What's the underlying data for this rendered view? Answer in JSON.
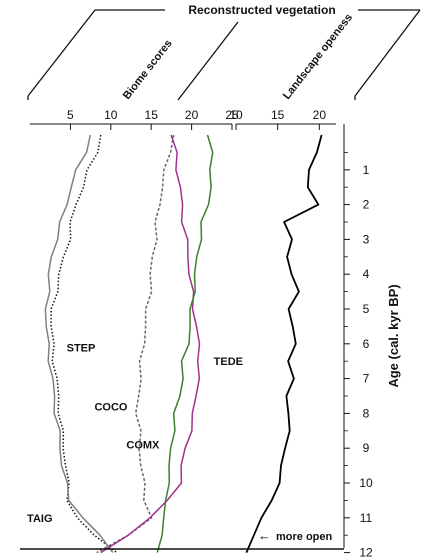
{
  "header": {
    "title": "Reconstructed vegetation",
    "left_panel_title": "Biome scores",
    "right_panel_title": "Landscape openess"
  },
  "chart_data": [
    {
      "type": "line",
      "title": "Biome scores",
      "orientation": "vertical-depth",
      "xlabel": "",
      "ylabel": "Age (cal. kyr BP)",
      "xlim": [
        0,
        25
      ],
      "ylim": [
        12,
        0
      ],
      "x_ticks": [
        5,
        10,
        15,
        20,
        25
      ],
      "y_ticks": [
        1,
        2,
        3,
        4,
        5,
        6,
        7,
        8,
        9,
        10,
        11,
        12
      ],
      "age": [
        0,
        0.5,
        1,
        1.5,
        2,
        2.5,
        3,
        3.5,
        4,
        4.5,
        5,
        5.5,
        6,
        6.5,
        7,
        7.5,
        8,
        8.5,
        9,
        9.5,
        10,
        10.5,
        11,
        11.5,
        12
      ],
      "series": [
        {
          "name": "STEP",
          "color": "#111111",
          "style": "dotted",
          "values": [
            8.8,
            8.2,
            7.3,
            6.5,
            5.6,
            5.2,
            4.8,
            4.2,
            3.7,
            3.2,
            2.8,
            2.6,
            2.8,
            3.0,
            3.2,
            3.5,
            3.7,
            3.9,
            4.2,
            4.5,
            4.6,
            4.8,
            5.8,
            7.8,
            11.0
          ]
        },
        {
          "name": "TAIG",
          "color": "#808080",
          "style": "solid",
          "values": [
            7.5,
            6.8,
            5.9,
            5.0,
            4.5,
            3.9,
            3.2,
            2.7,
            2.4,
            2.2,
            2.1,
            2.0,
            2.2,
            2.5,
            2.7,
            3.0,
            3.2,
            3.5,
            3.8,
            4.0,
            4.4,
            5.0,
            6.5,
            8.5,
            10.5
          ]
        },
        {
          "name": "COCO",
          "color": "#666666",
          "style": "dashed",
          "values": [
            17.8,
            17.2,
            16.8,
            16.3,
            16.0,
            15.7,
            15.5,
            15.2,
            15.0,
            14.8,
            14.5,
            14.3,
            14.0,
            13.8,
            13.6,
            13.4,
            13.3,
            13.5,
            13.6,
            13.8,
            14.0,
            14.3,
            15.0,
            12.0,
            8.5
          ]
        },
        {
          "name": "TEDE",
          "color": "#a0308f",
          "style": "solid",
          "values": [
            17.5,
            18.0,
            18.3,
            18.5,
            18.8,
            19.0,
            19.3,
            19.6,
            19.8,
            20.0,
            20.3,
            20.6,
            20.8,
            21.0,
            20.8,
            20.5,
            20.3,
            19.8,
            19.3,
            18.8,
            18.5,
            17.2,
            14.8,
            12.0,
            9.0
          ]
        },
        {
          "name": "COMX",
          "color": "#3c7f2c",
          "style": "solid",
          "values": [
            22.0,
            22.4,
            22.5,
            22.3,
            22.0,
            21.4,
            21.0,
            20.7,
            20.5,
            20.2,
            20.0,
            19.8,
            19.5,
            19.0,
            18.8,
            18.5,
            18.0,
            17.7,
            17.5,
            17.3,
            17.0,
            17.0,
            16.5,
            16.2,
            16.0
          ]
        }
      ]
    },
    {
      "type": "line",
      "title": "Landscape openess",
      "orientation": "vertical-depth",
      "xlabel": "",
      "ylabel": "Age (cal. kyr BP)",
      "xlim": [
        10,
        22
      ],
      "ylim": [
        12,
        0
      ],
      "x_ticks": [
        10,
        15,
        20
      ],
      "y_ticks": [
        1,
        2,
        3,
        4,
        5,
        6,
        7,
        8,
        9,
        10,
        11,
        12
      ],
      "age": [
        0,
        0.5,
        1,
        1.5,
        2,
        2.5,
        3,
        3.5,
        4,
        4.5,
        5,
        5.5,
        6,
        6.5,
        7,
        7.5,
        8,
        8.5,
        9,
        9.5,
        10,
        10.5,
        11,
        11.5,
        12
      ],
      "series": [
        {
          "name": "",
          "color": "#000000",
          "style": "solid",
          "values": [
            20.3,
            19.5,
            19.0,
            18.5,
            19.8,
            16.0,
            16.5,
            16.2,
            16.8,
            17.3,
            16.5,
            16.8,
            17.0,
            16.5,
            16.8,
            16.0,
            16.5,
            16.2,
            16.0,
            15.5,
            15.0,
            14.5,
            13.0,
            12.0,
            11.5
          ]
        }
      ]
    }
  ],
  "annotations": {
    "more_open": "more open",
    "arrow_icon": "left-arrow-icon"
  }
}
